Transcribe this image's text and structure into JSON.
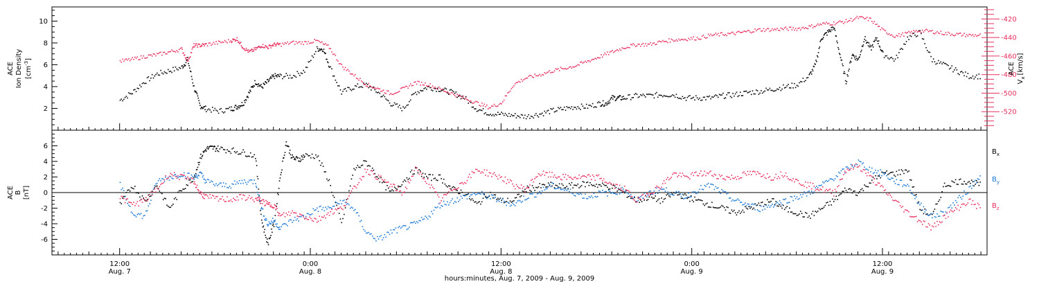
{
  "chart_data": [
    {
      "type": "scatter",
      "panel": "top",
      "ylabel_left": [
        "ACE",
        "Ion Density",
        "[cm⁻³]"
      ],
      "ylabel_right": [
        "ACE",
        "Vₓ [km/s]"
      ],
      "ylim_left": [
        0,
        11.3
      ],
      "ylim_right": [
        -540,
        -407
      ],
      "yticks_left": [
        2,
        4,
        6,
        8,
        10
      ],
      "yticks_right": [
        -520,
        -500,
        -480,
        -460,
        -440,
        -420
      ],
      "grid": false,
      "colors": {
        "density": "#000000",
        "vx": "#e8305f"
      },
      "series": [
        {
          "name": "Ion Density",
          "axis": "left",
          "color": "#000000",
          "x": [
            0,
            2,
            4,
            6,
            8,
            10,
            11,
            12,
            13,
            14,
            16,
            18,
            19,
            20,
            21,
            22,
            23,
            24,
            25,
            26,
            28,
            30,
            32,
            33,
            34,
            36,
            38,
            40,
            42,
            44,
            46,
            48,
            50,
            52,
            54,
            56,
            58,
            60,
            62,
            64,
            66,
            68,
            70,
            72,
            74,
            76,
            78,
            79,
            80,
            81,
            82,
            84,
            86,
            88,
            90,
            92,
            94,
            96,
            98,
            100,
            102,
            104,
            106,
            108,
            110,
            112,
            113,
            114,
            115,
            116,
            117,
            118,
            119,
            120,
            121,
            122,
            123,
            124,
            126,
            128,
            130,
            132,
            134,
            136,
            138,
            140
          ],
          "y": [
            2.8,
            3.5,
            4.5,
            5.2,
            5.5,
            5.8,
            6.5,
            4.0,
            2.3,
            2.0,
            1.8,
            2.0,
            2.2,
            2.5,
            3.5,
            4.5,
            4.0,
            4.5,
            5.0,
            5.0,
            5.0,
            5.5,
            7.5,
            7.5,
            6.0,
            3.5,
            4.0,
            4.2,
            3.5,
            2.5,
            2.0,
            3.5,
            4.0,
            3.8,
            3.5,
            3.0,
            2.0,
            1.6,
            1.5,
            1.4,
            1.3,
            1.5,
            1.8,
            2.0,
            2.2,
            2.2,
            2.5,
            2.5,
            3.0,
            3.0,
            3.0,
            3.2,
            3.2,
            3.3,
            3.3,
            3.0,
            3.0,
            3.0,
            3.2,
            3.3,
            3.5,
            3.6,
            3.8,
            4.0,
            4.2,
            5.0,
            6.0,
            8.5,
            9.0,
            9.5,
            7.0,
            4.5,
            7.0,
            6.5,
            8.5,
            7.5,
            8.5,
            7.0,
            6.5,
            8.5,
            9.0,
            6.5,
            6.0,
            5.5,
            5.0,
            5.0
          ]
        },
        {
          "name": "Vx",
          "axis": "right",
          "color": "#e8305f",
          "x": [
            0,
            2,
            4,
            6,
            8,
            10,
            11,
            12,
            13,
            14,
            16,
            18,
            19,
            20,
            21,
            22,
            23,
            24,
            25,
            26,
            28,
            30,
            32,
            34,
            36,
            38,
            40,
            42,
            44,
            46,
            48,
            50,
            52,
            54,
            56,
            58,
            60,
            62,
            64,
            66,
            68,
            70,
            72,
            74,
            76,
            78,
            80,
            82,
            84,
            86,
            88,
            90,
            92,
            94,
            96,
            98,
            100,
            102,
            104,
            106,
            108,
            110,
            112,
            114,
            116,
            118,
            120,
            122,
            124,
            126,
            128,
            130,
            132,
            134,
            136,
            138,
            140
          ],
          "y": [
            -465,
            -463,
            -460,
            -458,
            -455,
            -452,
            -465,
            -448,
            -448,
            -447,
            -445,
            -443,
            -441,
            -450,
            -455,
            -452,
            -448,
            -450,
            -447,
            -447,
            -445,
            -445,
            -443,
            -450,
            -470,
            -480,
            -490,
            -495,
            -500,
            -495,
            -488,
            -490,
            -495,
            -500,
            -505,
            -510,
            -515,
            -510,
            -490,
            -483,
            -480,
            -476,
            -473,
            -470,
            -465,
            -460,
            -455,
            -450,
            -447,
            -447,
            -444,
            -442,
            -441,
            -440,
            -437,
            -436,
            -435,
            -433,
            -431,
            -431,
            -430,
            -430,
            -428,
            -425,
            -424,
            -422,
            -418,
            -420,
            -432,
            -438,
            -435,
            -432,
            -433,
            -435,
            -436,
            -437,
            -437
          ]
        }
      ]
    },
    {
      "type": "scatter",
      "panel": "bottom",
      "ylabel_left": [
        "ACE",
        "B",
        "[nT]"
      ],
      "ylim": [
        -8,
        8
      ],
      "yticks": [
        -6,
        -4,
        -2,
        0,
        2,
        4,
        6
      ],
      "grid": false,
      "zero_line": true,
      "legend": [
        "Bₓ",
        "Bᵧ",
        "B_z"
      ],
      "legend_placement": "right",
      "series": [
        {
          "name": "Bx",
          "color": "#000000",
          "x": [
            0,
            2,
            4,
            6,
            8,
            10,
            12,
            13,
            14,
            15,
            16,
            18,
            20,
            22,
            23,
            24,
            25,
            26,
            27,
            28,
            29,
            30,
            32,
            34,
            36,
            38,
            40,
            42,
            44,
            46,
            48,
            50,
            52,
            54,
            56,
            58,
            60,
            62,
            64,
            66,
            68,
            70,
            72,
            74,
            76,
            78,
            80,
            82,
            84,
            86,
            88,
            90,
            92,
            94,
            96,
            98,
            100,
            102,
            104,
            106,
            108,
            110,
            112,
            114,
            116,
            118,
            120,
            122,
            124,
            126,
            128,
            130,
            132,
            134,
            136,
            138,
            140
          ],
          "y": [
            -1.5,
            1.0,
            -1.0,
            1.0,
            -2.0,
            0.5,
            2.0,
            4.5,
            5.7,
            5.8,
            5.7,
            5.5,
            5.2,
            4.8,
            -3.5,
            -6.5,
            -4.0,
            2.0,
            6.5,
            4.5,
            4.3,
            4.8,
            4.8,
            1.5,
            -4.0,
            3.0,
            4.0,
            2.0,
            0.0,
            1.5,
            3.0,
            2.0,
            2.0,
            0.5,
            0.0,
            -1.5,
            0.0,
            -1.0,
            -1.0,
            0.5,
            0.8,
            1.0,
            0.8,
            1.0,
            1.2,
            1.0,
            0.8,
            0.0,
            -1.0,
            -0.5,
            -1.0,
            0.0,
            -0.5,
            -1.0,
            -1.5,
            -2.0,
            -2.5,
            -2.0,
            -1.5,
            -1.0,
            -2.0,
            -2.5,
            -3.0,
            -2.0,
            -1.0,
            0.5,
            0.0,
            1.5,
            2.5,
            2.5,
            3.0,
            -2.0,
            -3.0,
            1.0,
            1.5,
            1.5,
            1.0
          ]
        },
        {
          "name": "By",
          "color": "#1a78d6",
          "x": [
            0,
            2,
            4,
            6,
            8,
            10,
            12,
            13,
            14,
            16,
            18,
            20,
            22,
            23,
            24,
            25,
            26,
            28,
            30,
            32,
            34,
            36,
            38,
            40,
            42,
            44,
            46,
            48,
            50,
            52,
            54,
            56,
            58,
            60,
            62,
            64,
            66,
            68,
            70,
            72,
            74,
            76,
            78,
            80,
            82,
            84,
            86,
            88,
            90,
            92,
            94,
            96,
            98,
            100,
            102,
            104,
            106,
            108,
            110,
            112,
            114,
            116,
            118,
            120,
            122,
            124,
            126,
            128,
            130,
            132,
            134,
            136,
            138,
            140
          ],
          "y": [
            1.0,
            -2.5,
            -3.0,
            1.5,
            2.0,
            2.5,
            2.0,
            2.5,
            1.5,
            1.0,
            1.0,
            1.5,
            1.5,
            -2.0,
            -4.0,
            -3.5,
            -4.5,
            -3.5,
            -3.0,
            -2.0,
            -2.0,
            -1.0,
            -2.0,
            -5.0,
            -6.0,
            -5.0,
            -4.5,
            -4.0,
            -3.0,
            -1.5,
            -1.0,
            -0.5,
            0.0,
            -0.5,
            -1.0,
            -1.5,
            -0.5,
            0.0,
            1.0,
            0.5,
            0.0,
            -0.5,
            0.0,
            0.0,
            0.5,
            -1.0,
            0.0,
            0.5,
            0.0,
            -0.5,
            0.5,
            1.0,
            0.0,
            -1.0,
            -1.5,
            -2.0,
            -1.5,
            -1.0,
            -0.5,
            0.0,
            1.0,
            2.0,
            3.0,
            4.0,
            3.0,
            2.5,
            1.5,
            1.0,
            -1.5,
            -3.0,
            -2.5,
            -1.0,
            0.5,
            2.5
          ]
        },
        {
          "name": "Bz",
          "color": "#e8305f",
          "x": [
            0,
            2,
            4,
            6,
            8,
            10,
            12,
            13,
            14,
            16,
            18,
            20,
            22,
            23,
            24,
            25,
            26,
            28,
            30,
            32,
            34,
            36,
            38,
            40,
            42,
            44,
            46,
            48,
            50,
            52,
            54,
            56,
            58,
            60,
            62,
            64,
            66,
            68,
            70,
            72,
            74,
            76,
            78,
            80,
            82,
            84,
            86,
            88,
            90,
            92,
            94,
            96,
            98,
            100,
            102,
            104,
            106,
            108,
            110,
            112,
            114,
            116,
            118,
            120,
            122,
            124,
            126,
            128,
            130,
            132,
            134,
            136,
            138,
            140
          ],
          "y": [
            -0.5,
            -1.5,
            -1.0,
            0.5,
            2.5,
            2.0,
            1.5,
            0.0,
            -0.5,
            -0.8,
            -0.8,
            -0.5,
            -0.8,
            -1.0,
            -1.5,
            -1.5,
            -3.0,
            -2.5,
            -3.0,
            -3.5,
            -2.5,
            -2.0,
            0.5,
            3.0,
            2.0,
            1.0,
            0.0,
            3.0,
            1.5,
            -1.0,
            0.5,
            1.5,
            3.0,
            2.5,
            2.0,
            1.0,
            0.5,
            2.5,
            2.3,
            2.0,
            2.0,
            2.0,
            2.0,
            1.0,
            0.5,
            -1.0,
            0.0,
            1.0,
            2.5,
            2.0,
            2.5,
            2.5,
            2.0,
            2.0,
            2.5,
            2.5,
            2.0,
            2.5,
            1.5,
            1.0,
            0.5,
            0.0,
            3.0,
            3.5,
            2.0,
            0.5,
            -1.0,
            -2.5,
            -3.5,
            -4.5,
            -3.0,
            -2.0,
            -1.0,
            -2.0
          ]
        }
      ]
    }
  ],
  "x_axis": {
    "range": [
      -11,
      141
    ],
    "tick_labels": [
      {
        "x": 0,
        "time": "12:00",
        "date": "Aug. 7"
      },
      {
        "x": 31,
        "time": "0:00",
        "date": "Aug. 8"
      },
      {
        "x": 62,
        "time": "12:00",
        "date": "Aug. 8"
      },
      {
        "x": 93,
        "time": "0:00",
        "date": "Aug. 9"
      },
      {
        "x": 124,
        "time": "12:00",
        "date": "Aug. 9"
      }
    ]
  },
  "labels": {
    "top_left_ylabel_1": "ACE",
    "top_left_ylabel_2": "Ion Density",
    "top_left_ylabel_3": "[cm",
    "top_left_ylabel_3_sup": "-3",
    "top_left_ylabel_3_end": "]",
    "top_right_ylabel_1": "ACE",
    "top_right_ylabel_2": "V",
    "top_right_ylabel_2_sub": "x",
    "top_right_ylabel_2_end": "[km/s]",
    "bottom_left_ylabel_1": "ACE",
    "bottom_left_ylabel_2": "B",
    "bottom_left_ylabel_3": "[nT]",
    "legend_bx": "B",
    "legend_bx_sub": "x",
    "legend_by": "B",
    "legend_by_sub": "y",
    "legend_bz": "B",
    "legend_bz_sub": "z",
    "xlabel": "hours:minutes, Aug.  7, 2009 - Aug.  9, 2009"
  }
}
